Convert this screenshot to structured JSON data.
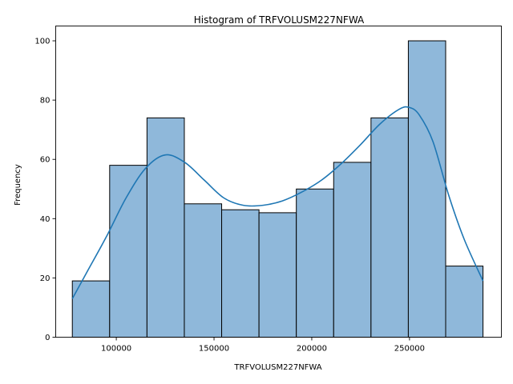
{
  "chart_data": {
    "type": "histogram",
    "title": "Histogram of TRFVOLUSM227NFWA",
    "xlabel": "TRFVOLUSM227NFWA",
    "ylabel": "Frequency",
    "bin_edges": [
      77500,
      96600,
      115700,
      134800,
      153900,
      173000,
      192100,
      211200,
      230300,
      249400,
      268500,
      287600
    ],
    "counts": [
      19,
      58,
      74,
      45,
      43,
      42,
      50,
      59,
      74,
      100,
      24
    ],
    "xlim": [
      69000,
      297000
    ],
    "ylim": [
      0,
      105
    ],
    "xticks": [
      100000,
      150000,
      200000,
      250000
    ],
    "xtick_labels": [
      "100000",
      "150000",
      "200000",
      "250000"
    ],
    "yticks": [
      0,
      20,
      40,
      60,
      80,
      100
    ],
    "ytick_labels": [
      "0",
      "20",
      "40",
      "60",
      "80",
      "100"
    ],
    "kde": {
      "x": [
        77500,
        85000,
        95000,
        105000,
        115000,
        125000,
        135000,
        145000,
        155000,
        165000,
        175000,
        185000,
        195000,
        205000,
        215000,
        225000,
        235000,
        245000,
        250000,
        255000,
        262000,
        270000,
        278000,
        287600
      ],
      "y": [
        13,
        22,
        34,
        47,
        57,
        61.5,
        59,
        53,
        47,
        44.5,
        44.5,
        46,
        49,
        53,
        58.5,
        65,
        72,
        77,
        77.5,
        75,
        66,
        48,
        33,
        19
      ]
    },
    "colors": {
      "bar_fill": "#8fb8da",
      "bar_edge": "#000000",
      "kde_line": "#1f77b4"
    },
    "grid": false,
    "legend": "none"
  }
}
